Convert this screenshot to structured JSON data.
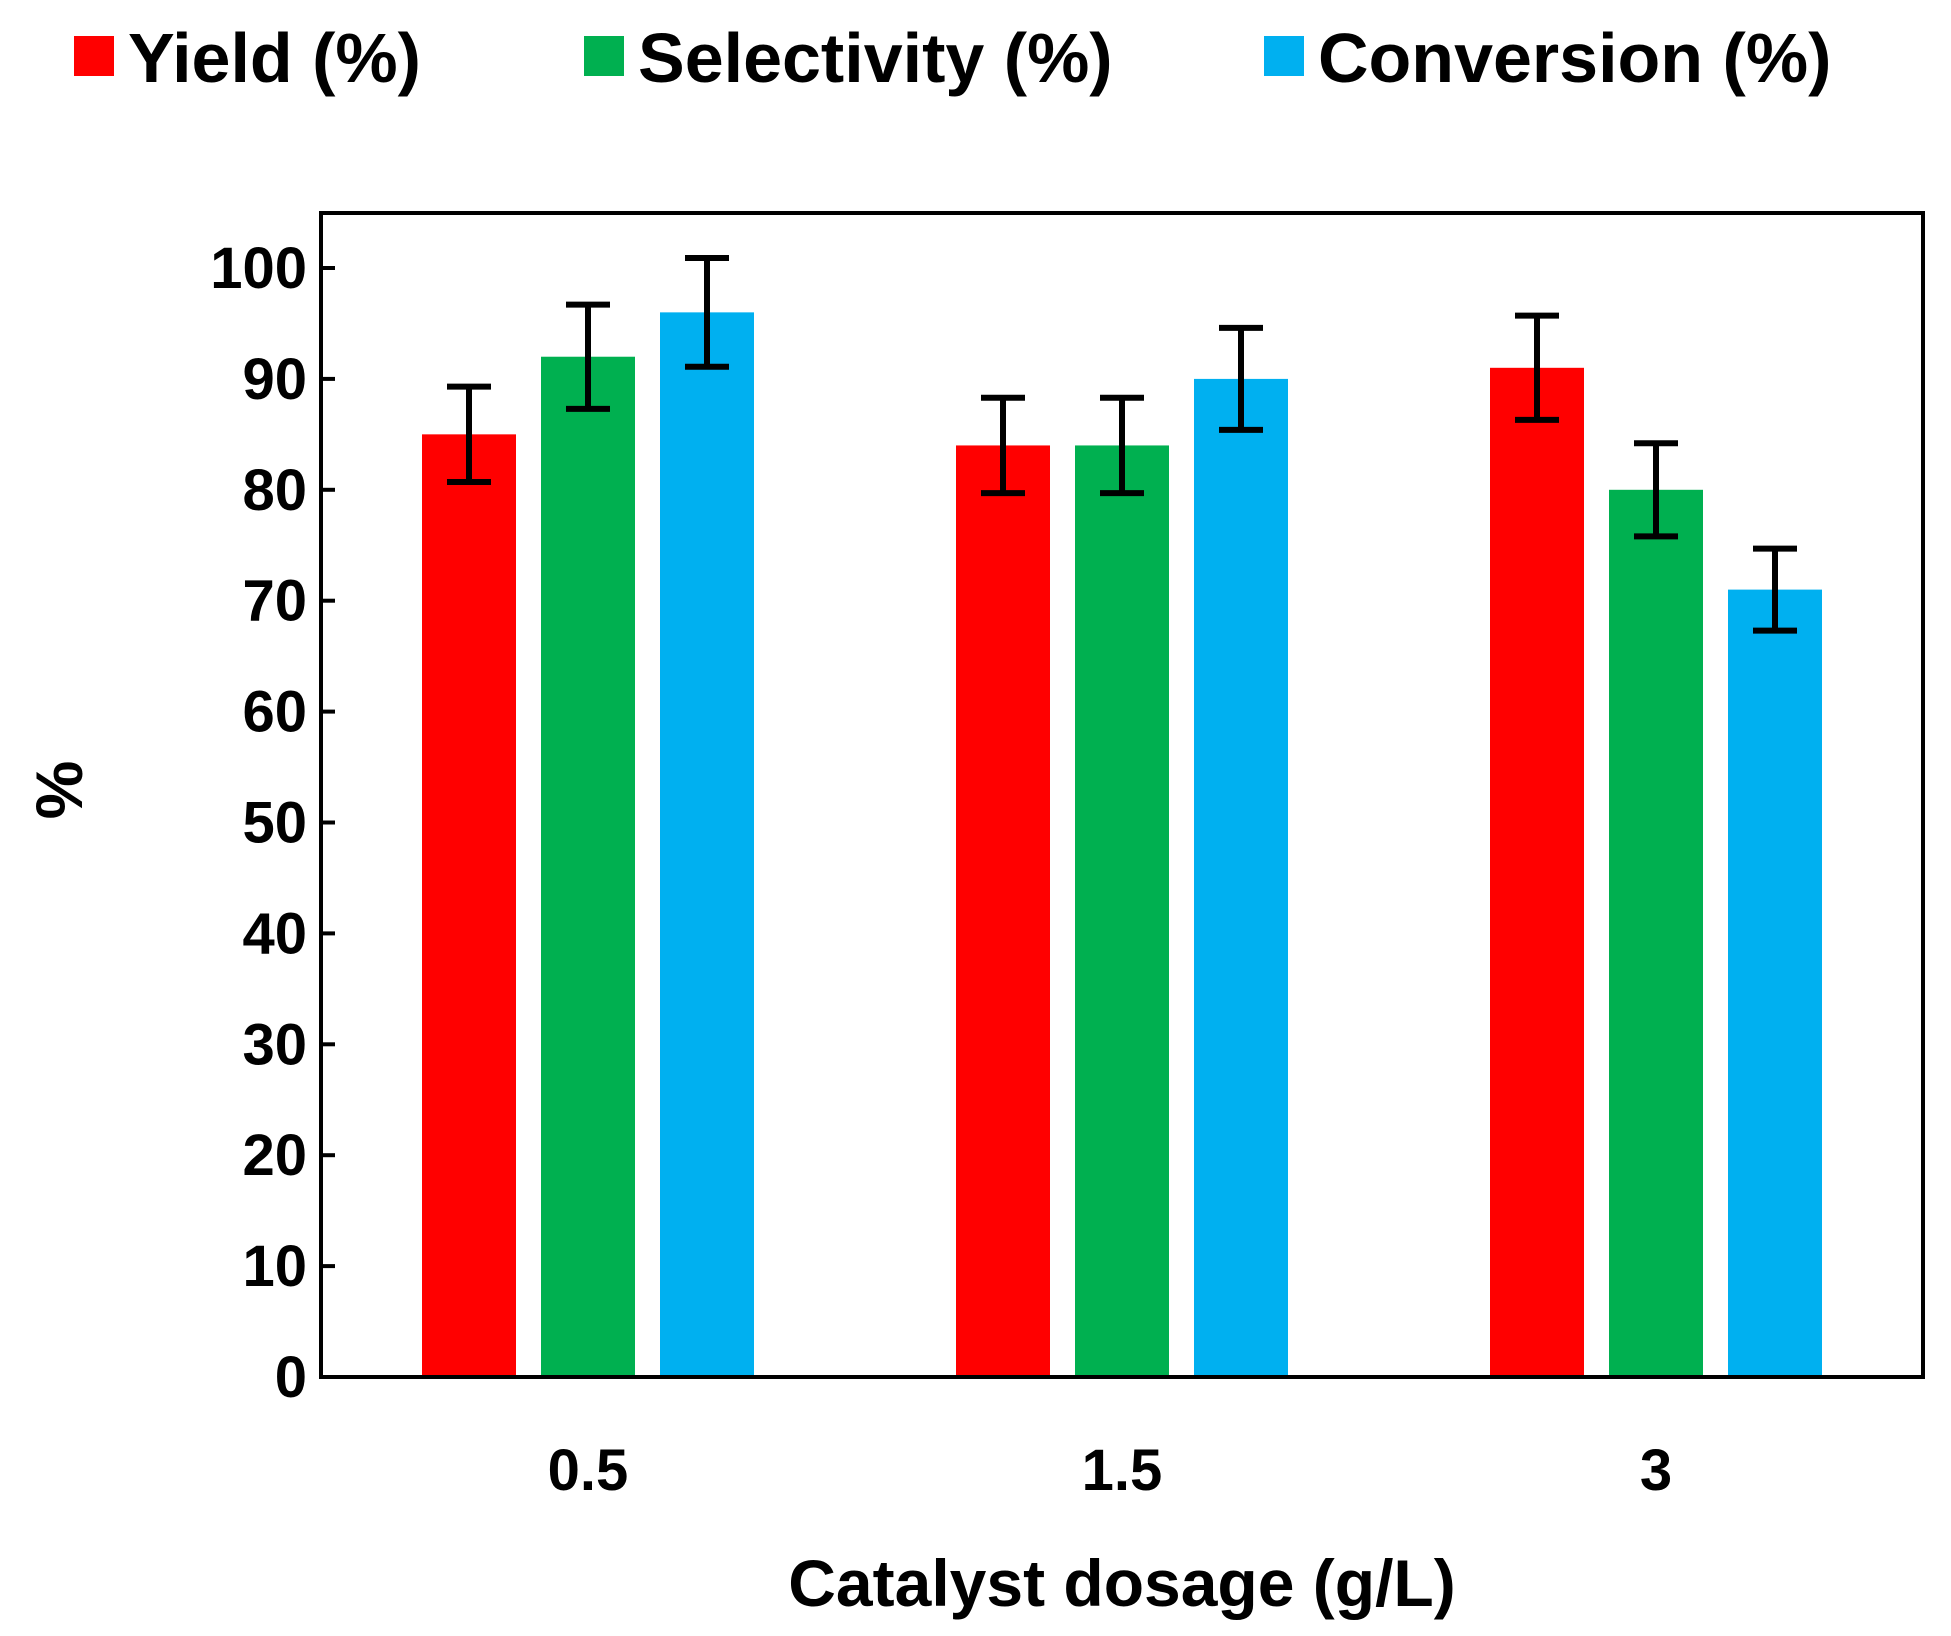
{
  "chart_data": {
    "type": "bar",
    "title": "",
    "xlabel": "Catalyst dosage (g/L)",
    "ylabel": "%",
    "categories": [
      "0.5",
      "1.5",
      "3"
    ],
    "ylim": [
      0,
      100
    ],
    "yticks": [
      "0",
      "10",
      "20",
      "30",
      "40",
      "50",
      "60",
      "70",
      "80",
      "90",
      "100"
    ],
    "grid": false,
    "legend_position": "top",
    "series": [
      {
        "name": "Yield (%)",
        "color": "#FF0000",
        "values": [
          85,
          84,
          91
        ],
        "error": [
          4.3,
          4.3,
          4.7
        ]
      },
      {
        "name": "Selectivity (%)",
        "color": "#00B050",
        "values": [
          92,
          84,
          80
        ],
        "error": [
          4.7,
          4.3,
          4.2
        ]
      },
      {
        "name": "Conversion (%)",
        "color": "#00B0F0",
        "values": [
          96,
          90,
          71
        ],
        "error": [
          4.9,
          4.6,
          3.7
        ]
      }
    ]
  }
}
